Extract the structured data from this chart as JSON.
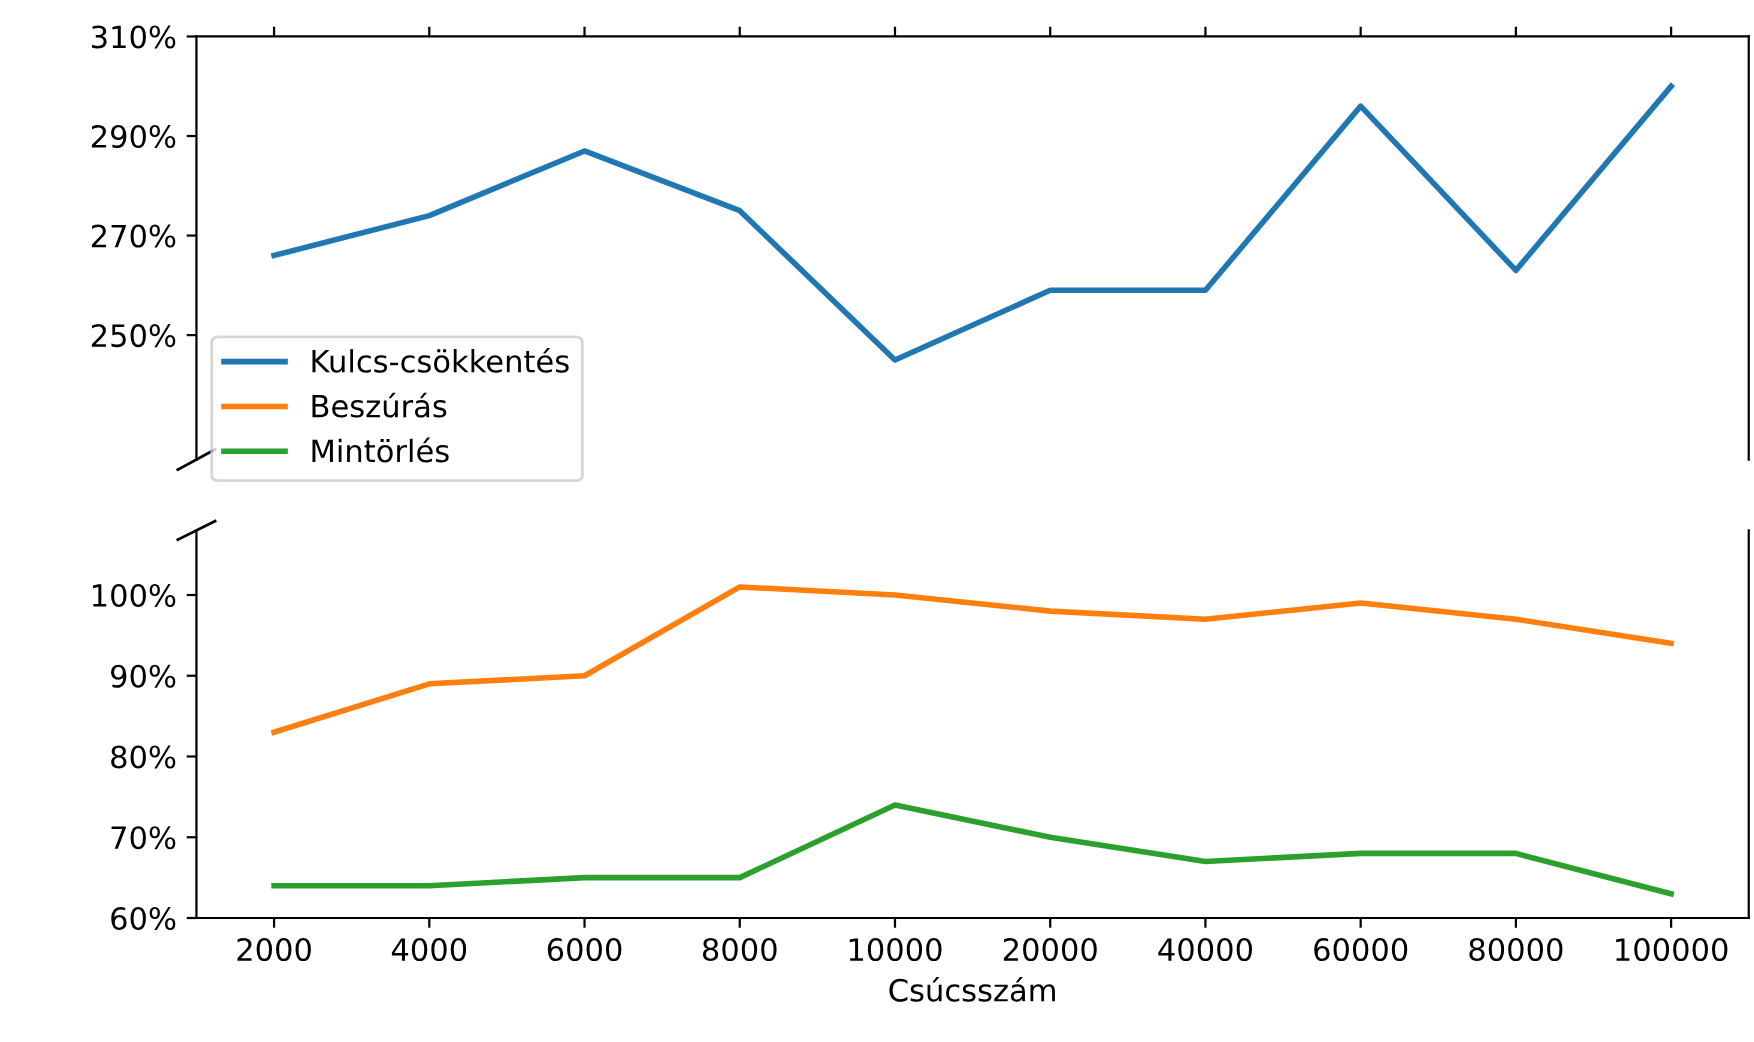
{
  "chart_data": [
    {
      "type": "line",
      "categories": [
        "2000",
        "4000",
        "6000",
        "8000",
        "10000",
        "20000",
        "40000",
        "60000",
        "80000",
        "100000"
      ],
      "series": [
        {
          "name": "Kulcs-csökkentés",
          "color": "#1f77b4",
          "values": [
            266,
            274,
            287,
            275,
            245,
            259,
            259,
            296,
            263,
            300
          ]
        }
      ],
      "ylim": [
        225,
        310
      ],
      "yticks": [
        {
          "value": 250,
          "label": "250%"
        },
        {
          "value": 270,
          "label": "270%"
        },
        {
          "value": 290,
          "label": "290%"
        },
        {
          "value": 310,
          "label": "310%"
        }
      ],
      "tick_labels": "y",
      "legend": "left",
      "grid": false
    },
    {
      "type": "line",
      "categories": [
        "2000",
        "4000",
        "6000",
        "8000",
        "10000",
        "20000",
        "40000",
        "60000",
        "80000",
        "100000"
      ],
      "series": [
        {
          "name": "Beszúrás",
          "color": "#ff7f0e",
          "values": [
            83,
            89,
            90,
            101,
            100,
            98,
            97,
            99,
            97,
            94
          ]
        },
        {
          "name": "Mintörlés",
          "color": "#2ca02c",
          "values": [
            64,
            64,
            65,
            65,
            74,
            70,
            67,
            68,
            68,
            63
          ]
        }
      ],
      "ylim": [
        60,
        108
      ],
      "yticks": [
        {
          "value": 60,
          "label": "60%"
        },
        {
          "value": 70,
          "label": "70%"
        },
        {
          "value": 80,
          "label": "80%"
        },
        {
          "value": 90,
          "label": "90%"
        },
        {
          "value": 100,
          "label": "100%"
        }
      ],
      "xlabel": "Csúcsszám",
      "legend": "top left",
      "grid": false
    }
  ]
}
